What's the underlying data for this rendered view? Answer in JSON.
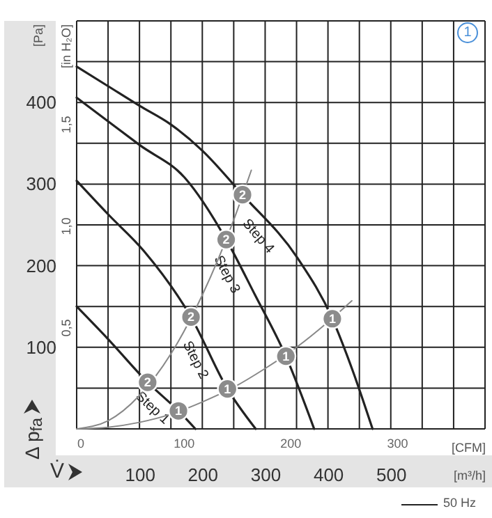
{
  "chart_data": {
    "type": "line",
    "xlabel": "V̇",
    "ylabel": "Δ p$_{fa}$",
    "y2label": "[in H₂O]",
    "x2label": "[CFM]",
    "xlim": [
      0,
      650
    ],
    "xticks": [
      {
        "value": 0,
        "label": null
      },
      {
        "value": 50,
        "label": null
      },
      100,
      {
        "value": 150,
        "label": null
      },
      200,
      {
        "value": 250,
        "label": null
      },
      300,
      {
        "value": 350,
        "label": null
      },
      400,
      {
        "value": 450,
        "label": null
      },
      500,
      {
        "value": 550,
        "label": null
      },
      {
        "value": 600,
        "label": null
      },
      {
        "value": 650,
        "label": null
      }
    ],
    "ylim": [
      0,
      500
    ],
    "yticks": [
      {
        "value": 0,
        "label": null
      },
      {
        "value": 50,
        "label": null
      },
      100,
      {
        "value": 150,
        "label": null
      },
      200,
      {
        "value": 250,
        "label": null
      },
      300,
      {
        "value": 350,
        "label": null
      },
      400,
      {
        "value": 450,
        "label": null
      },
      {
        "value": 500,
        "label": null
      }
    ],
    "y2lim": [
      0,
      2.007
    ],
    "y2ticks": [
      {
        "value": 0.5,
        "label": "0,5"
      },
      {
        "value": 1.0,
        "label": "1,0"
      },
      {
        "value": 1.5,
        "label": "1,5"
      }
    ],
    "x2lim": [
      0,
      382.6
    ],
    "x2ticks": [
      0,
      100,
      200,
      300
    ],
    "grid": true,
    "series": [
      {
        "name": "Step 4",
        "color": "#222222",
        "x": [
          0,
          50,
          100,
          150,
          200,
          264,
          351,
          407,
          440,
          471
        ],
        "values": [
          444,
          420,
          396,
          373,
          341,
          287,
          210,
          135,
          70,
          0
        ]
      },
      {
        "name": "Step 3",
        "color": "#222222",
        "x": [
          0,
          50,
          100,
          173,
          238,
          284,
          333,
          378
        ],
        "values": [
          406,
          377,
          348,
          307,
          232,
          164,
          89,
          0
        ]
      },
      {
        "name": "Step 2",
        "color": "#222222",
        "x": [
          0,
          50,
          107,
          182,
          240,
          285
        ],
        "values": [
          304,
          263,
          218,
          137,
          49,
          0
        ]
      },
      {
        "name": "Step 1",
        "color": "#222222",
        "x": [
          0,
          50,
          113,
          162,
          189
        ],
        "values": [
          150,
          110,
          57,
          22,
          0
        ]
      },
      {
        "color": "#888888",
        "x": [
          0,
          50,
          100,
          150,
          200,
          250,
          300,
          350,
          400,
          438
        ],
        "values": [
          0,
          2,
          8,
          18,
          33,
          51,
          74,
          100,
          131,
          157
        ]
      },
      {
        "color": "#888888",
        "x": [
          0,
          50,
          100,
          150,
          200,
          250,
          278
        ],
        "values": [
          0,
          10,
          41,
          92,
          164,
          256,
          317
        ]
      },
      {
        "type": "scatter",
        "color": "#8c8c8c",
        "x": [
          162,
          240,
          333,
          407
        ],
        "values": [
          22,
          49,
          89,
          135
        ]
      },
      {
        "type": "scatter",
        "color": "#8c8c8c",
        "x": [
          113,
          182,
          238,
          264
        ],
        "values": [
          57,
          137,
          232,
          287
        ]
      }
    ],
    "annotations": [
      "[Pa]",
      "[m³/h]",
      "50 Hz",
      "1",
      {
        "text": "1",
        "x": 162,
        "y": 22
      },
      {
        "text": "1",
        "x": 240,
        "y": 49
      },
      {
        "text": "1",
        "x": 333,
        "y": 89
      },
      {
        "text": "1",
        "x": 407,
        "y": 135
      },
      {
        "text": "2",
        "x": 113,
        "y": 57
      },
      {
        "text": "2",
        "x": 182,
        "y": 137
      },
      {
        "text": "2",
        "x": 238,
        "y": 232
      },
      {
        "text": "2",
        "x": 264,
        "y": 287
      }
    ]
  }
}
